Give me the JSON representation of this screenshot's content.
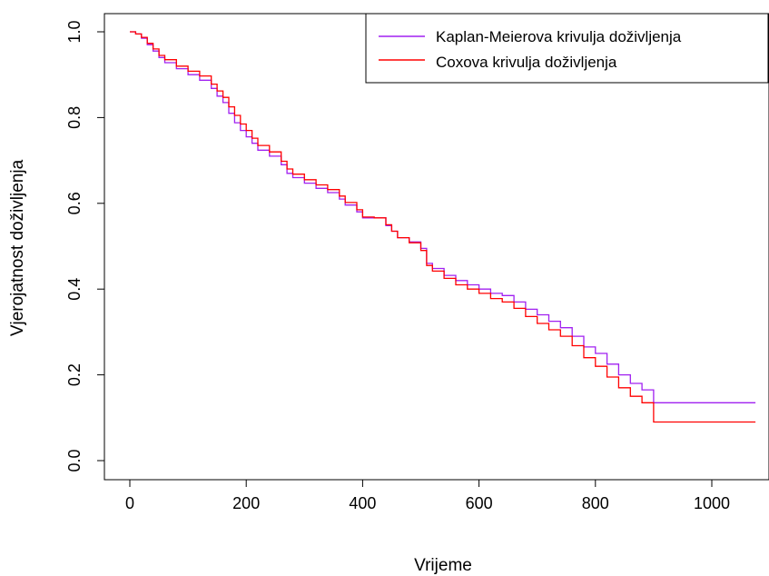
{
  "chart_data": {
    "type": "line",
    "step": true,
    "title": "",
    "xlabel": "Vrijeme",
    "ylabel": "Vjerojatnost doživljenja",
    "xlim": [
      0,
      1100
    ],
    "ylim": [
      0,
      1
    ],
    "x_ticks": [
      {
        "value": 0,
        "label": "0"
      },
      {
        "value": 200,
        "label": "200"
      },
      {
        "value": 400,
        "label": "400"
      },
      {
        "value": 600,
        "label": "600"
      },
      {
        "value": 800,
        "label": "800"
      },
      {
        "value": 1000,
        "label": "1000"
      }
    ],
    "y_ticks": [
      {
        "value": 0.0,
        "label": "0.0"
      },
      {
        "value": 0.2,
        "label": "0.2"
      },
      {
        "value": 0.4,
        "label": "0.4"
      },
      {
        "value": 0.6,
        "label": "0.6"
      },
      {
        "value": 0.8,
        "label": "0.8"
      },
      {
        "value": 1.0,
        "label": "1.0"
      }
    ],
    "grid": false,
    "legend_position": "top-right",
    "series": [
      {
        "name": "Kaplan-Meierova krivulja doživljenja",
        "color": "#a020f0",
        "x": [
          0,
          10,
          20,
          30,
          40,
          50,
          60,
          80,
          100,
          120,
          140,
          150,
          160,
          170,
          180,
          190,
          200,
          210,
          220,
          240,
          260,
          270,
          280,
          300,
          320,
          340,
          360,
          370,
          390,
          400,
          420,
          440,
          450,
          460,
          480,
          500,
          510,
          520,
          540,
          560,
          580,
          600,
          620,
          640,
          660,
          680,
          700,
          720,
          740,
          760,
          780,
          800,
          820,
          840,
          860,
          880,
          900,
          1075
        ],
        "y": [
          1.0,
          0.995,
          0.985,
          0.97,
          0.955,
          0.94,
          0.928,
          0.914,
          0.9,
          0.887,
          0.868,
          0.85,
          0.835,
          0.81,
          0.788,
          0.77,
          0.755,
          0.74,
          0.724,
          0.71,
          0.69,
          0.67,
          0.66,
          0.647,
          0.635,
          0.625,
          0.61,
          0.596,
          0.58,
          0.566,
          0.566,
          0.548,
          0.535,
          0.52,
          0.51,
          0.495,
          0.46,
          0.448,
          0.432,
          0.42,
          0.41,
          0.4,
          0.39,
          0.385,
          0.37,
          0.353,
          0.34,
          0.325,
          0.31,
          0.29,
          0.265,
          0.25,
          0.225,
          0.2,
          0.18,
          0.165,
          0.135,
          0.135
        ]
      },
      {
        "name": "Coxova krivulja doživljenja",
        "color": "#ff0000",
        "x": [
          0,
          10,
          20,
          30,
          40,
          50,
          60,
          80,
          100,
          120,
          140,
          150,
          160,
          170,
          180,
          190,
          200,
          210,
          220,
          240,
          260,
          270,
          280,
          300,
          320,
          340,
          360,
          370,
          390,
          400,
          420,
          440,
          450,
          460,
          480,
          500,
          510,
          520,
          540,
          560,
          580,
          600,
          620,
          640,
          660,
          680,
          700,
          720,
          740,
          760,
          780,
          800,
          820,
          840,
          860,
          880,
          900,
          1075
        ],
        "y": [
          1.0,
          0.995,
          0.987,
          0.973,
          0.96,
          0.945,
          0.935,
          0.92,
          0.908,
          0.897,
          0.878,
          0.862,
          0.847,
          0.825,
          0.805,
          0.785,
          0.77,
          0.752,
          0.735,
          0.72,
          0.698,
          0.68,
          0.668,
          0.655,
          0.643,
          0.632,
          0.617,
          0.602,
          0.585,
          0.568,
          0.566,
          0.55,
          0.535,
          0.52,
          0.508,
          0.49,
          0.455,
          0.442,
          0.425,
          0.41,
          0.4,
          0.39,
          0.378,
          0.37,
          0.355,
          0.336,
          0.32,
          0.305,
          0.29,
          0.268,
          0.24,
          0.22,
          0.195,
          0.17,
          0.15,
          0.135,
          0.09,
          0.09
        ]
      }
    ]
  }
}
